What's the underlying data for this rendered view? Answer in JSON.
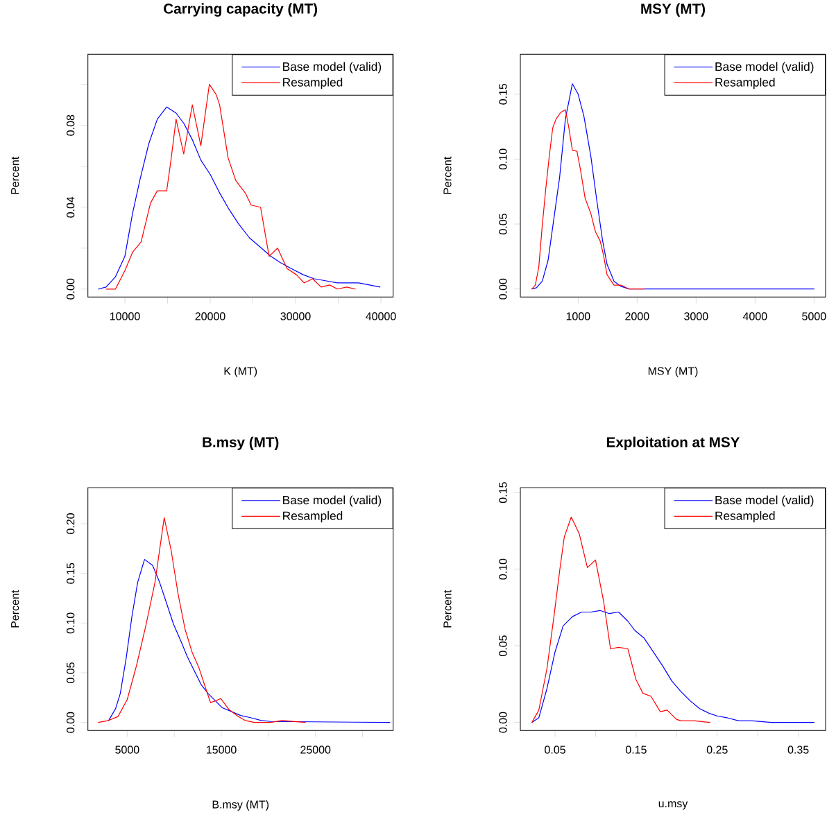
{
  "chart_data": [
    {
      "type": "line",
      "title": "Carrying capacity (MT)",
      "xlabel": "K (MT)",
      "ylabel": "Percent",
      "legend": "top right",
      "xlim": [
        5667,
        41439
      ],
      "ylim": [
        -0.0039,
        0.1147
      ],
      "xticks": [
        10000,
        {
          "value": 15000,
          "label": null
        },
        20000,
        {
          "value": 25000,
          "label": null
        },
        30000,
        {
          "value": 35000,
          "label": null
        },
        40000
      ],
      "yticks": [
        {
          "value": 0,
          "label": "0.00"
        },
        {
          "value": 0.02,
          "label": null
        },
        {
          "value": 0.04,
          "label": "0.04"
        },
        {
          "value": 0.06,
          "label": null
        },
        {
          "value": 0.08,
          "label": "0.08"
        },
        {
          "value": 0.1,
          "label": null
        }
      ],
      "series": [
        {
          "name": "Base model (valid)",
          "color": "#0000ff",
          "x": [
            6900,
            7800,
            8900,
            10000,
            10900,
            11800,
            12800,
            13800,
            14900,
            16000,
            16900,
            17900,
            18900,
            20000,
            21100,
            22200,
            23300,
            24600,
            26000,
            27100,
            28200,
            29500,
            30900,
            32200,
            33600,
            34900,
            37400,
            39900
          ],
          "values": [
            0,
            0.001,
            0.006,
            0.016,
            0.037,
            0.054,
            0.071,
            0.083,
            0.089,
            0.086,
            0.081,
            0.073,
            0.063,
            0.056,
            0.047,
            0.039,
            0.032,
            0.025,
            0.02,
            0.016,
            0.013,
            0.01,
            0.007,
            0.005,
            0.004,
            0.003,
            0.003,
            0.001
          ]
        },
        {
          "name": "Resampled",
          "color": "#ff0000",
          "x": [
            7800,
            8900,
            10000,
            10900,
            11900,
            13000,
            13800,
            14900,
            15400,
            16000,
            16900,
            17900,
            18900,
            19900,
            20700,
            21100,
            22100,
            23000,
            24100,
            24800,
            25900,
            26900,
            27900,
            29000,
            30100,
            31000,
            32000,
            33000,
            34000,
            34900,
            36000,
            37000
          ],
          "values": [
            0,
            0,
            0.009,
            0.018,
            0.023,
            0.042,
            0.048,
            0.048,
            0.063,
            0.083,
            0.066,
            0.09,
            0.07,
            0.1,
            0.095,
            0.09,
            0.064,
            0.053,
            0.047,
            0.041,
            0.04,
            0.016,
            0.02,
            0.01,
            0.007,
            0.003,
            0.005,
            0.001,
            0.002,
            0,
            0.001,
            0
          ]
        }
      ]
    },
    {
      "type": "line",
      "title": "MSY (MT)",
      "xlabel": "MSY (MT)",
      "ylabel": "Percent",
      "legend": "top right",
      "xlim": [
        20,
        5196
      ],
      "ylim": [
        -0.0062,
        0.1807
      ],
      "xticks": [
        1000,
        2000,
        3000,
        4000,
        5000
      ],
      "yticks": [
        {
          "value": 0,
          "label": "0.00"
        },
        {
          "value": 0.05,
          "label": "0.05"
        },
        {
          "value": 0.1,
          "label": "0.10"
        },
        {
          "value": 0.15,
          "label": "0.15"
        }
      ],
      "series": [
        {
          "name": "Base model (valid)",
          "color": "#0000ff",
          "x": [
            216,
            294,
            392,
            490,
            588,
            686,
            784,
            902,
            1000,
            1098,
            1216,
            1314,
            1412,
            1490,
            1608,
            1726,
            1863,
            5000
          ],
          "values": [
            0,
            0.001,
            0.006,
            0.022,
            0.054,
            0.086,
            0.131,
            0.158,
            0.15,
            0.133,
            0.102,
            0.069,
            0.038,
            0.019,
            0.006,
            0.002,
            0,
            0
          ]
        },
        {
          "name": "Resampled",
          "color": "#ff0000",
          "x": [
            216,
            274,
            333,
            392,
            451,
            510,
            569,
            627,
            706,
            784,
            843,
            902,
            980,
            1039,
            1118,
            1216,
            1294,
            1373,
            1431,
            1490,
            1608,
            1726,
            1863,
            2118
          ],
          "values": [
            0,
            0.003,
            0.017,
            0.049,
            0.077,
            0.102,
            0.124,
            0.131,
            0.136,
            0.138,
            0.124,
            0.107,
            0.106,
            0.092,
            0.07,
            0.058,
            0.044,
            0.037,
            0.026,
            0.011,
            0.003,
            0.003,
            0,
            0
          ]
        }
      ]
    },
    {
      "type": "line",
      "title": "B.msy (MT)",
      "xlabel": "B.msy (MT)",
      "ylabel": "Percent",
      "legend": "top right",
      "xlim": [
        823,
        33256
      ],
      "ylim": [
        -0.0081,
        0.2361
      ],
      "xticks": [
        5000,
        {
          "value": 10000,
          "label": null
        },
        15000,
        {
          "value": 20000,
          "label": null
        },
        25000,
        {
          "value": 30000,
          "label": null
        }
      ],
      "yticks": [
        {
          "value": 0,
          "label": "0.00"
        },
        {
          "value": 0.05,
          "label": "0.05"
        },
        {
          "value": 0.1,
          "label": "0.10"
        },
        {
          "value": 0.15,
          "label": "0.15"
        },
        {
          "value": 0.2,
          "label": "0.20"
        }
      ],
      "series": [
        {
          "name": "Base model (valid)",
          "color": "#0000ff",
          "x": [
            3030,
            3770,
            4260,
            4880,
            5490,
            6110,
            6840,
            7700,
            8440,
            9180,
            9910,
            10650,
            11390,
            12130,
            12860,
            13600,
            14340,
            15070,
            16060,
            17040,
            18020,
            19250,
            20230,
            32900
          ],
          "values": [
            0.002,
            0.014,
            0.029,
            0.064,
            0.106,
            0.141,
            0.164,
            0.158,
            0.141,
            0.12,
            0.099,
            0.083,
            0.066,
            0.052,
            0.038,
            0.029,
            0.022,
            0.015,
            0.011,
            0.007,
            0.005,
            0.002,
            0.001,
            0
          ]
        },
        {
          "name": "Resampled",
          "color": "#ff0000",
          "x": [
            1930,
            3030,
            4020,
            5000,
            5980,
            6970,
            7950,
            8930,
            9670,
            10410,
            11140,
            11880,
            12620,
            13350,
            13850,
            14460,
            14950,
            15810,
            16790,
            17530,
            18510,
            20230,
            21460,
            23920
          ],
          "values": [
            0,
            0.002,
            0.006,
            0.023,
            0.057,
            0.097,
            0.141,
            0.206,
            0.173,
            0.129,
            0.094,
            0.071,
            0.055,
            0.034,
            0.02,
            0.022,
            0.024,
            0.013,
            0.006,
            0.002,
            0,
            0,
            0.002,
            0
          ]
        }
      ]
    },
    {
      "type": "line",
      "title": "Exploitation at MSY",
      "xlabel": "u.msy",
      "ylabel": "Percent",
      "legend": "top right",
      "xlim": [
        0.0072,
        0.3837
      ],
      "ylim": [
        -0.0053,
        0.1531
      ],
      "xticks": [
        0.05,
        {
          "value": 0.1,
          "label": null
        },
        0.15,
        {
          "value": 0.2,
          "label": null
        },
        0.25,
        {
          "value": 0.3,
          "label": null
        },
        0.35
      ],
      "yticks": [
        {
          "value": 0,
          "label": "0.00"
        },
        {
          "value": 0.05,
          "label": "0.05"
        },
        {
          "value": 0.1,
          "label": "0.10"
        },
        {
          "value": 0.15,
          "label": "0.15"
        }
      ],
      "series": [
        {
          "name": "Base model (valid)",
          "color": "#0000ff",
          "x": [
            0.0215,
            0.03,
            0.04,
            0.05,
            0.06,
            0.0714,
            0.0828,
            0.0942,
            0.1056,
            0.117,
            0.1284,
            0.1398,
            0.1484,
            0.1598,
            0.1712,
            0.1826,
            0.194,
            0.2054,
            0.2168,
            0.2283,
            0.2397,
            0.2511,
            0.2625,
            0.2767,
            0.2938,
            0.3167,
            0.3694
          ],
          "values": [
            0,
            0.003,
            0.022,
            0.046,
            0.063,
            0.069,
            0.072,
            0.072,
            0.073,
            0.071,
            0.072,
            0.066,
            0.06,
            0.055,
            0.046,
            0.037,
            0.027,
            0.02,
            0.014,
            0.009,
            0.006,
            0.004,
            0.003,
            0.001,
            0.001,
            0,
            0
          ]
        },
        {
          "name": "Resampled",
          "color": "#ff0000",
          "x": [
            0.0215,
            0.03,
            0.04,
            0.0486,
            0.0557,
            0.0614,
            0.07,
            0.0799,
            0.0899,
            0.0999,
            0.1099,
            0.1184,
            0.1284,
            0.1398,
            0.1498,
            0.1584,
            0.1684,
            0.1798,
            0.1883,
            0.1997,
            0.2054,
            0.2225,
            0.2411
          ],
          "values": [
            0,
            0.008,
            0.035,
            0.069,
            0.099,
            0.121,
            0.134,
            0.123,
            0.101,
            0.106,
            0.079,
            0.048,
            0.049,
            0.048,
            0.028,
            0.019,
            0.017,
            0.007,
            0.008,
            0.002,
            0.001,
            0.001,
            0
          ]
        }
      ]
    }
  ]
}
